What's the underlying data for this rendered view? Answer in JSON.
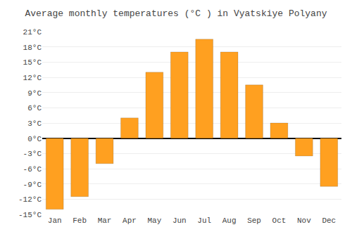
{
  "chart_data": {
    "type": "bar",
    "title": "Average monthly temperatures (°C ) in Vyatskiye Polyany",
    "categories": [
      "Jan",
      "Feb",
      "Mar",
      "Apr",
      "May",
      "Jun",
      "Jul",
      "Aug",
      "Sep",
      "Oct",
      "Nov",
      "Dec"
    ],
    "values": [
      -14,
      -11.5,
      -5,
      4,
      13,
      17,
      19.5,
      17,
      10.5,
      3,
      -3.5,
      -9.5
    ],
    "color": "#FFA020",
    "ylim": [
      -15,
      21
    ],
    "yticks": [
      {
        "value": -15,
        "label": "-15°C"
      },
      {
        "value": -12,
        "label": "-12°C"
      },
      {
        "value": -9,
        "label": "-9°C"
      },
      {
        "value": -6,
        "label": "-6°C"
      },
      {
        "value": -3,
        "label": "-3°C"
      },
      {
        "value": 0,
        "label": "0°C"
      },
      {
        "value": 3,
        "label": "3°C"
      },
      {
        "value": 6,
        "label": "6°C"
      },
      {
        "value": 9,
        "label": "9°C"
      },
      {
        "value": 12,
        "label": "12°C"
      },
      {
        "value": 15,
        "label": "15°C"
      },
      {
        "value": 18,
        "label": "18°C"
      },
      {
        "value": 21,
        "label": "21°C"
      }
    ],
    "grid": true
  }
}
